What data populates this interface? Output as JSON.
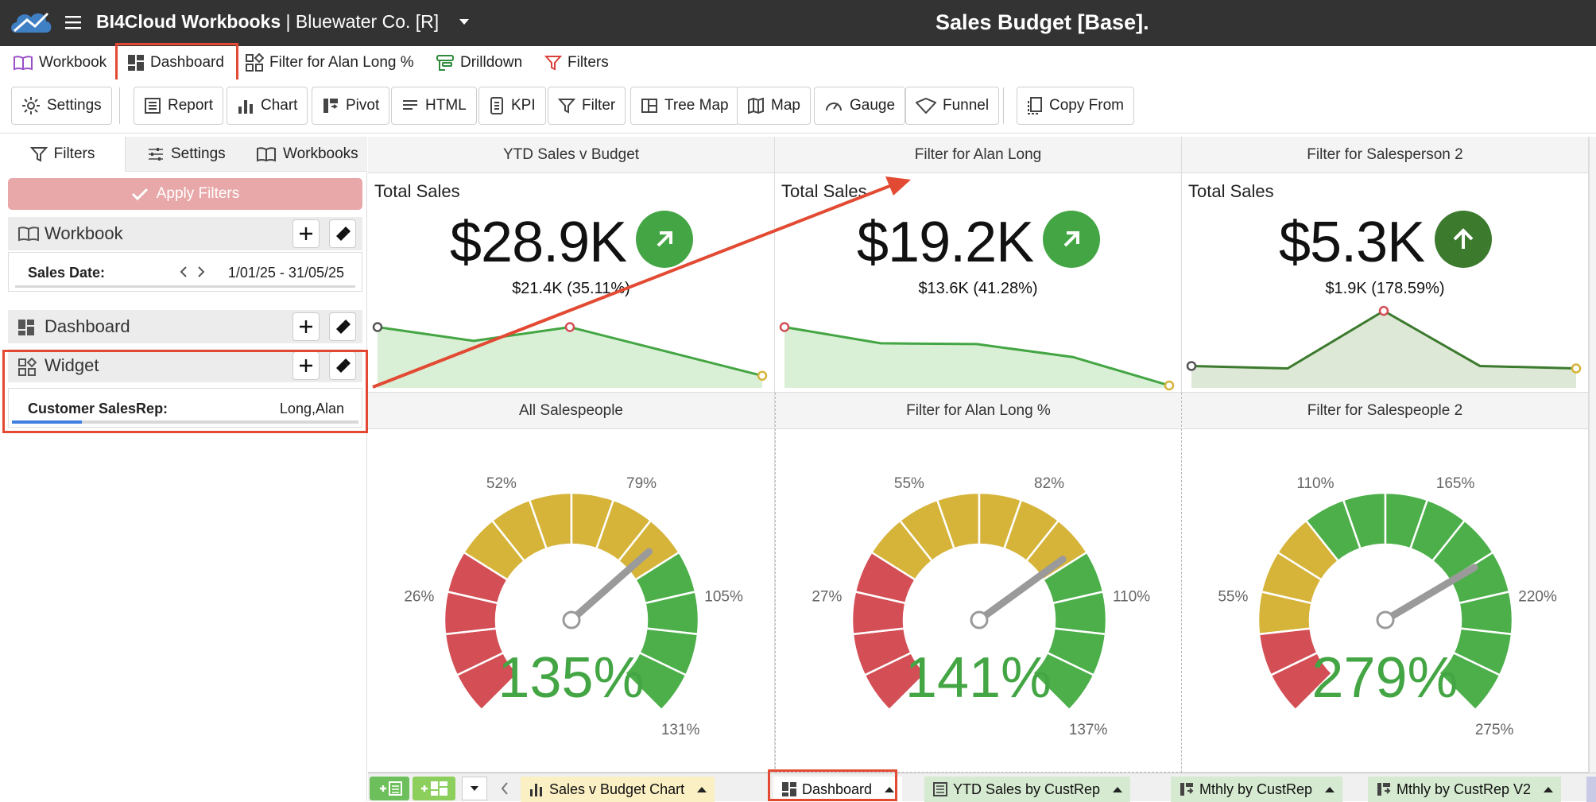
{
  "app": {
    "name": "BI4Cloud Workbooks",
    "separator": "|",
    "company": "Bluewater Co. [R]",
    "report_title": "Sales Budget [Base]."
  },
  "menu": {
    "items": [
      "Workbook",
      "Dashboard",
      "Filter for Alan Long %",
      "Drilldown",
      "Filters"
    ],
    "selected": "Dashboard"
  },
  "toolbar": {
    "buttons": [
      "Settings",
      "Report",
      "Chart",
      "Pivot",
      "HTML",
      "KPI",
      "Filter",
      "Tree Map",
      "Map",
      "Gauge",
      "Funnel",
      "Copy From"
    ]
  },
  "sidebar": {
    "tabs": [
      "Filters",
      "Settings",
      "Workbooks"
    ],
    "active_tab": "Filters",
    "apply_label": "Apply Filters",
    "sections": {
      "workbook": {
        "name": "Workbook",
        "field": {
          "label": "Sales Date:",
          "value": "1/01/25 - 31/05/25"
        }
      },
      "dashboard": {
        "name": "Dashboard"
      },
      "widget": {
        "name": "Widget",
        "field": {
          "label": "Customer SalesRep:",
          "value": "Long,Alan"
        }
      }
    }
  },
  "kpis": [
    {
      "header": "YTD Sales v Budget",
      "title": "Total Sales",
      "value": "$28.9K",
      "sub": "$21.4K (35.11%)",
      "arrow": "up-right",
      "color": "#43a543"
    },
    {
      "header": "Filter for Alan Long",
      "title": "Total Sales",
      "value": "$19.2K",
      "sub": "$13.6K (41.28%)",
      "arrow": "up-right",
      "color": "#43a543"
    },
    {
      "header": "Filter for Salesperson 2",
      "title": "Total Sales",
      "value": "$5.3K",
      "sub": "$1.9K (178.59%)",
      "arrow": "up",
      "color": "#3c7a2e"
    }
  ],
  "gauges": [
    {
      "header": "All Salespeople",
      "value": "135%",
      "ticks": [
        "26%",
        "52%",
        "79%",
        "105%",
        "131%"
      ]
    },
    {
      "header": "Filter for Alan Long %",
      "value": "141%",
      "ticks": [
        "27%",
        "55%",
        "82%",
        "110%",
        "137%"
      ]
    },
    {
      "header": "Filter for Salespeople 2",
      "value": "279%",
      "ticks": [
        "55%",
        "110%",
        "165%",
        "220%",
        "275%"
      ]
    }
  ],
  "bottom_tabs": [
    "Sales v Budget Chart",
    "Dashboard",
    "YTD Sales by CustRep",
    "Mthly by CustRep",
    "Mthly by CustRep V2"
  ],
  "chart_data": [
    {
      "type": "area",
      "title": "YTD Sales v Budget",
      "x": [
        1,
        2,
        3,
        4,
        5
      ],
      "values": [
        0.75,
        0.58,
        0.75,
        0.45,
        0.15
      ],
      "ylim": [
        0,
        1
      ]
    },
    {
      "type": "area",
      "title": "Filter for Alan Long",
      "x": [
        1,
        2,
        3,
        4,
        5
      ],
      "values": [
        0.75,
        0.55,
        0.54,
        0.38,
        0.03
      ],
      "ylim": [
        0,
        1
      ]
    },
    {
      "type": "area",
      "title": "Filter for Salesperson 2",
      "x": [
        1,
        2,
        3,
        4,
        5
      ],
      "values": [
        0.27,
        0.24,
        0.95,
        0.27,
        0.24
      ],
      "ylim": [
        0,
        1
      ]
    }
  ],
  "colors": {
    "topbar": "#333333",
    "accent_green": "#43a543",
    "gauge_red": "#d34e55",
    "gauge_yellow": "#d6b43a",
    "gauge_green": "#4caf4a",
    "annotation_red": "#e24a33",
    "apply_button": "#e8a8a9"
  }
}
